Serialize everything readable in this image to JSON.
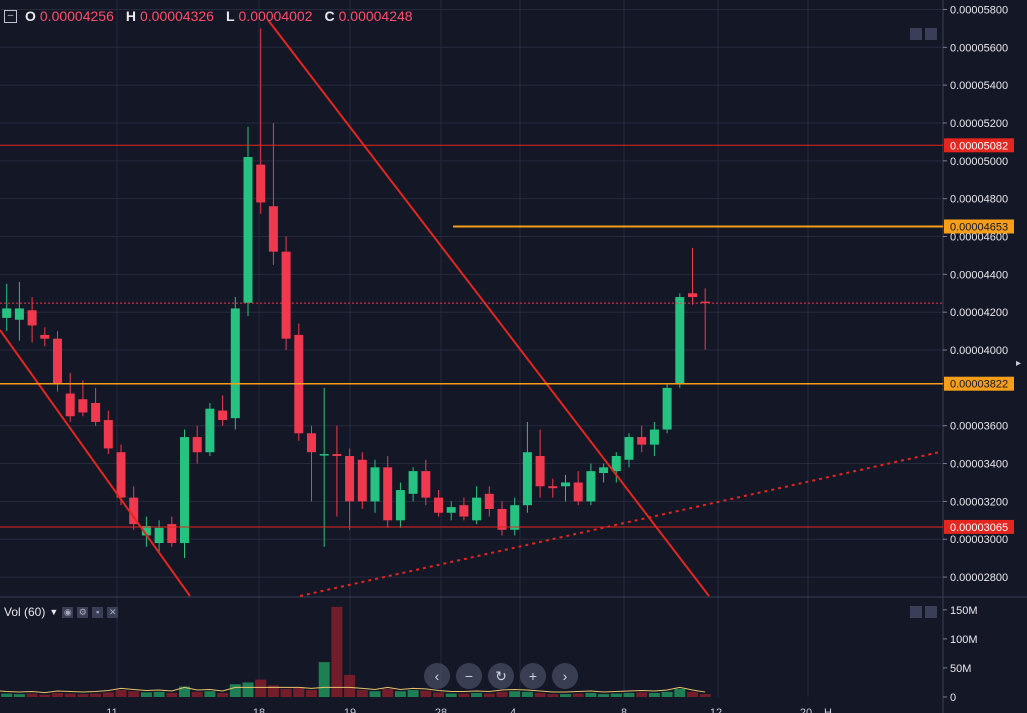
{
  "ohlc": {
    "o_label": "O",
    "o": "0.00004256",
    "h_label": "H",
    "h": "0.00004326",
    "l_label": "L",
    "l": "0.00004002",
    "c_label": "C",
    "c": "0.00004248"
  },
  "volume_label": "Vol (60)",
  "colors": {
    "bg": "#141726",
    "up": "#26c281",
    "down": "#f0394f",
    "grid": "#262a3d",
    "red_line": "#e3261f",
    "orange_line": "#f59e1a"
  },
  "nav_icons": [
    "chevron-left-icon",
    "minus-icon",
    "reset-icon",
    "plus-icon",
    "chevron-right-icon"
  ],
  "chart_data": {
    "type": "candlestick",
    "price_axis": {
      "min": 2.7e-05,
      "max": 5.85e-05,
      "ticks": [
        "0.00005800",
        "0.00005600",
        "0.00005400",
        "0.00005200",
        "0.00005000",
        "0.00004800",
        "0.00004600",
        "0.00004400",
        "0.00004200",
        "0.00004000",
        "0.00003600",
        "0.00003400",
        "0.00003200",
        "0.00003000",
        "0.00002800"
      ],
      "tick_values": [
        5.8e-05,
        5.6e-05,
        5.4e-05,
        5.2e-05,
        5e-05,
        4.8e-05,
        4.6e-05,
        4.4e-05,
        4.2e-05,
        4e-05,
        3.6e-05,
        3.4e-05,
        3.2e-05,
        3e-05,
        2.8e-05
      ]
    },
    "volume_axis": {
      "max": 160,
      "ticks": [
        "150M",
        "100M",
        "50M",
        "0"
      ],
      "tick_values": [
        150,
        100,
        50,
        0
      ]
    },
    "price_labels": [
      {
        "text": "0.00005082",
        "value": 5.082e-05,
        "color": "#e3261f"
      },
      {
        "text": "0.00004653",
        "value": 4.653e-05,
        "color": "#f59e1a"
      },
      {
        "text": "0.00003822",
        "value": 3.822e-05,
        "color": "#f59e1a"
      },
      {
        "text": "0.00003065",
        "value": 3.065e-05,
        "color": "#e3261f"
      }
    ],
    "current_price": 4.248e-05,
    "candles": [
      {
        "o": 4.05e-05,
        "h": 4.3e-05,
        "l": 3.98e-05,
        "c": 4.22e-05,
        "v": 8
      },
      {
        "o": 4.17e-05,
        "h": 4.35e-05,
        "l": 4.1e-05,
        "c": 4.22e-05,
        "v": 6
      },
      {
        "o": 4.16e-05,
        "h": 4.36e-05,
        "l": 4.05e-05,
        "c": 4.22e-05,
        "v": 5
      },
      {
        "o": 4.21e-05,
        "h": 4.28e-05,
        "l": 4.04e-05,
        "c": 4.13e-05,
        "v": 6
      },
      {
        "o": 4.08e-05,
        "h": 4.12e-05,
        "l": 4.02e-05,
        "c": 4.06e-05,
        "v": 4
      },
      {
        "o": 4.06e-05,
        "h": 4.1e-05,
        "l": 3.78e-05,
        "c": 3.82e-05,
        "v": 7
      },
      {
        "o": 3.77e-05,
        "h": 3.88e-05,
        "l": 3.62e-05,
        "c": 3.65e-05,
        "v": 6
      },
      {
        "o": 3.74e-05,
        "h": 3.84e-05,
        "l": 3.65e-05,
        "c": 3.67e-05,
        "v": 5
      },
      {
        "o": 3.72e-05,
        "h": 3.8e-05,
        "l": 3.6e-05,
        "c": 3.62e-05,
        "v": 6
      },
      {
        "o": 3.63e-05,
        "h": 3.68e-05,
        "l": 3.45e-05,
        "c": 3.48e-05,
        "v": 8
      },
      {
        "o": 3.46e-05,
        "h": 3.5e-05,
        "l": 3.18e-05,
        "c": 3.22e-05,
        "v": 12
      },
      {
        "o": 3.22e-05,
        "h": 3.28e-05,
        "l": 3.05e-05,
        "c": 3.08e-05,
        "v": 10
      },
      {
        "o": 3.02e-05,
        "h": 3.12e-05,
        "l": 2.96e-05,
        "c": 3.07e-05,
        "v": 8
      },
      {
        "o": 2.98e-05,
        "h": 3.1e-05,
        "l": 2.93e-05,
        "c": 3.06e-05,
        "v": 9
      },
      {
        "o": 3.08e-05,
        "h": 3.12e-05,
        "l": 2.96e-05,
        "c": 2.98e-05,
        "v": 7
      },
      {
        "o": 2.98e-05,
        "h": 3.58e-05,
        "l": 2.9e-05,
        "c": 3.54e-05,
        "v": 18
      },
      {
        "o": 3.54e-05,
        "h": 3.6e-05,
        "l": 3.4e-05,
        "c": 3.46e-05,
        "v": 9
      },
      {
        "o": 3.46e-05,
        "h": 3.72e-05,
        "l": 3.44e-05,
        "c": 3.69e-05,
        "v": 10
      },
      {
        "o": 3.68e-05,
        "h": 3.76e-05,
        "l": 3.6e-05,
        "c": 3.63e-05,
        "v": 7
      },
      {
        "o": 3.64e-05,
        "h": 4.28e-05,
        "l": 3.58e-05,
        "c": 4.22e-05,
        "v": 22
      },
      {
        "o": 4.25e-05,
        "h": 5.18e-05,
        "l": 4.18e-05,
        "c": 5.02e-05,
        "v": 25
      },
      {
        "o": 4.98e-05,
        "h": 5.7e-05,
        "l": 4.72e-05,
        "c": 4.78e-05,
        "v": 30
      },
      {
        "o": 4.76e-05,
        "h": 5.2e-05,
        "l": 4.45e-05,
        "c": 4.52e-05,
        "v": 20
      },
      {
        "o": 4.52e-05,
        "h": 4.6e-05,
        "l": 4e-05,
        "c": 4.06e-05,
        "v": 14
      },
      {
        "o": 4.08e-05,
        "h": 4.14e-05,
        "l": 3.52e-05,
        "c": 3.56e-05,
        "v": 16
      },
      {
        "o": 3.56e-05,
        "h": 3.6e-05,
        "l": 3.2e-05,
        "c": 3.46e-05,
        "v": 12
      },
      {
        "o": 3.45e-05,
        "h": 3.8e-05,
        "l": 2.96e-05,
        "c": 3.45e-05,
        "v": 60
      },
      {
        "o": 3.45e-05,
        "h": 3.6e-05,
        "l": 3.12e-05,
        "c": 3.44e-05,
        "v": 155
      },
      {
        "o": 3.44e-05,
        "h": 3.48e-05,
        "l": 3.05e-05,
        "c": 3.2e-05,
        "v": 38
      },
      {
        "o": 3.42e-05,
        "h": 3.46e-05,
        "l": 3.16e-05,
        "c": 3.2e-05,
        "v": 12
      },
      {
        "o": 3.2e-05,
        "h": 3.42e-05,
        "l": 3.14e-05,
        "c": 3.38e-05,
        "v": 10
      },
      {
        "o": 3.38e-05,
        "h": 3.44e-05,
        "l": 3.06e-05,
        "c": 3.1e-05,
        "v": 14
      },
      {
        "o": 3.1e-05,
        "h": 3.3e-05,
        "l": 3.06e-05,
        "c": 3.26e-05,
        "v": 10
      },
      {
        "o": 3.24e-05,
        "h": 3.38e-05,
        "l": 3.2e-05,
        "c": 3.36e-05,
        "v": 12
      },
      {
        "o": 3.36e-05,
        "h": 3.42e-05,
        "l": 3.18e-05,
        "c": 3.22e-05,
        "v": 11
      },
      {
        "o": 3.22e-05,
        "h": 3.26e-05,
        "l": 3.12e-05,
        "c": 3.14e-05,
        "v": 8
      },
      {
        "o": 3.14e-05,
        "h": 3.2e-05,
        "l": 3.1e-05,
        "c": 3.17e-05,
        "v": 6
      },
      {
        "o": 3.18e-05,
        "h": 3.22e-05,
        "l": 3.1e-05,
        "c": 3.12e-05,
        "v": 6
      },
      {
        "o": 3.1e-05,
        "h": 3.28e-05,
        "l": 3.08e-05,
        "c": 3.22e-05,
        "v": 7
      },
      {
        "o": 3.24e-05,
        "h": 3.28e-05,
        "l": 3.12e-05,
        "c": 3.16e-05,
        "v": 6
      },
      {
        "o": 3.16e-05,
        "h": 3.2e-05,
        "l": 3.02e-05,
        "c": 3.05e-05,
        "v": 9
      },
      {
        "o": 3.05e-05,
        "h": 3.22e-05,
        "l": 3.02e-05,
        "c": 3.18e-05,
        "v": 10
      },
      {
        "o": 3.18e-05,
        "h": 3.62e-05,
        "l": 3.14e-05,
        "c": 3.46e-05,
        "v": 9
      },
      {
        "o": 3.44e-05,
        "h": 3.58e-05,
        "l": 3.22e-05,
        "c": 3.28e-05,
        "v": 7
      },
      {
        "o": 3.28e-05,
        "h": 3.32e-05,
        "l": 3.22e-05,
        "c": 3.27e-05,
        "v": 5
      },
      {
        "o": 3.28e-05,
        "h": 3.34e-05,
        "l": 3.2e-05,
        "c": 3.3e-05,
        "v": 5
      },
      {
        "o": 3.3e-05,
        "h": 3.36e-05,
        "l": 3.18e-05,
        "c": 3.2e-05,
        "v": 6
      },
      {
        "o": 3.2e-05,
        "h": 3.4e-05,
        "l": 3.18e-05,
        "c": 3.36e-05,
        "v": 7
      },
      {
        "o": 3.35e-05,
        "h": 3.4e-05,
        "l": 3.3e-05,
        "c": 3.38e-05,
        "v": 5
      },
      {
        "o": 3.36e-05,
        "h": 3.46e-05,
        "l": 3.3e-05,
        "c": 3.44e-05,
        "v": 6
      },
      {
        "o": 3.42e-05,
        "h": 3.56e-05,
        "l": 3.38e-05,
        "c": 3.54e-05,
        "v": 7
      },
      {
        "o": 3.54e-05,
        "h": 3.6e-05,
        "l": 3.46e-05,
        "c": 3.5e-05,
        "v": 8
      },
      {
        "o": 3.5e-05,
        "h": 3.62e-05,
        "l": 3.44e-05,
        "c": 3.58e-05,
        "v": 7
      },
      {
        "o": 3.58e-05,
        "h": 3.82e-05,
        "l": 3.56e-05,
        "c": 3.8e-05,
        "v": 9
      },
      {
        "o": 3.82e-05,
        "h": 4.3e-05,
        "l": 3.8e-05,
        "c": 4.28e-05,
        "v": 14
      },
      {
        "o": 4.3e-05,
        "h": 4.54e-05,
        "l": 4.24e-05,
        "c": 4.28e-05,
        "v": 9
      },
      {
        "o": 4.256e-05,
        "h": 4.326e-05,
        "l": 4.002e-05,
        "c": 4.248e-05,
        "v": 5
      }
    ],
    "x_tick_labels": [
      "11",
      "18",
      "19",
      "28",
      "4",
      "8",
      "12",
      "20",
      "H"
    ]
  }
}
